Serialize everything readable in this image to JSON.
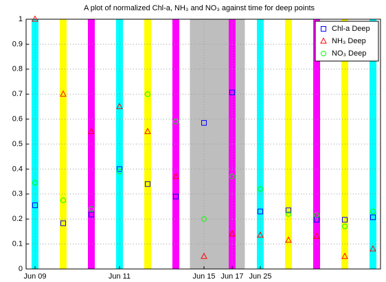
{
  "chart_data": {
    "type": "scatter",
    "title": "A plot of normalized Chl-a, NH₃ and NO₃ against time for deep points",
    "categories": [
      "Jun 09",
      null,
      null,
      "Jun 11",
      null,
      null,
      "Jun 15",
      "Jun 17",
      "Jun 25",
      null,
      null,
      null,
      null
    ],
    "band_colors": [
      "#00ffff",
      "#ffff00",
      "#ff00ff",
      "#00ffff",
      "#ffff00",
      "#ff00ff",
      null,
      "#ff00ff",
      "#00ffff",
      "#ffff00",
      "#ff00ff",
      "#ffff00",
      "#00ffff"
    ],
    "shaded_range": [
      5.5,
      7.45
    ],
    "shaded_color": "#bebebe",
    "series": [
      {
        "name": "Chl-a Deep",
        "color": "#0000ff",
        "marker": "square",
        "values": [
          0.255,
          0.183,
          0.218,
          0.4,
          0.34,
          0.29,
          0.585,
          0.707,
          0.23,
          0.235,
          0.197,
          0.197,
          0.207
        ]
      },
      {
        "name": "NH₃ Deep",
        "color": "#ff0000",
        "marker": "triangle",
        "values": [
          1.0,
          0.7,
          0.55,
          0.65,
          0.55,
          0.37,
          0.05,
          0.14,
          0.135,
          0.115,
          0.13,
          0.05,
          0.08
        ]
      },
      {
        "name": "NO₃ Deep",
        "color": "#00ff00",
        "marker": "circle",
        "values": [
          0.345,
          0.275,
          0.24,
          0.39,
          0.7,
          0.59,
          0.2,
          0.37,
          0.32,
          0.22,
          0.215,
          0.17,
          0.23
        ]
      }
    ],
    "ylim": [
      0,
      1
    ],
    "yticks": [
      0,
      0.1,
      0.2,
      0.3,
      0.4,
      0.5,
      0.6,
      0.7,
      0.8,
      0.9,
      1
    ],
    "grid": true,
    "legend": "top-right"
  }
}
